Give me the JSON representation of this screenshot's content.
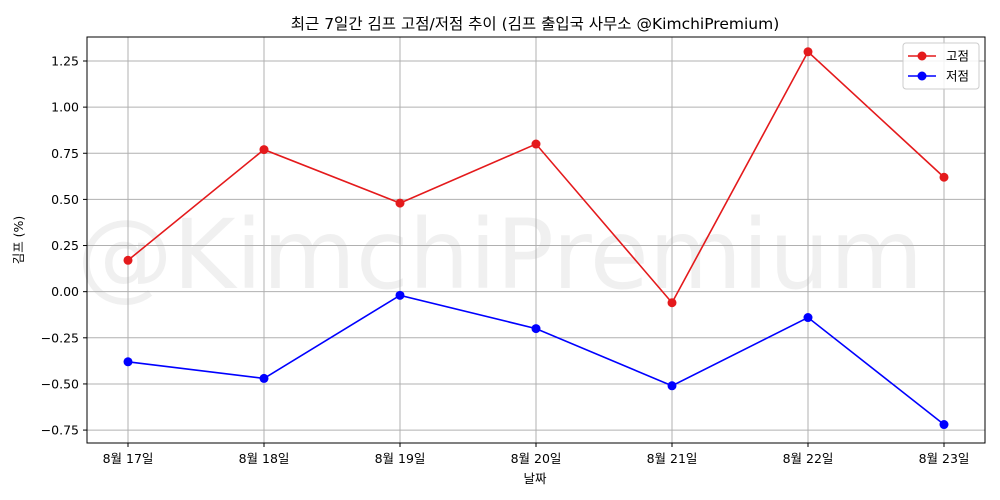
{
  "chart_data": {
    "type": "line",
    "title": "최근 7일간 김프 고점/저점 추이 (김프 출입국 사무소 @KimchiPremium)",
    "xlabel": "날짜",
    "ylabel": "김프 (%)",
    "watermark": "@KimchiPremium",
    "categories": [
      "8월 17일",
      "8월 18일",
      "8월 19일",
      "8월 20일",
      "8월 21일",
      "8월 22일",
      "8월 23일"
    ],
    "ylim": [
      -0.82,
      1.38
    ],
    "yticks": [
      1.25,
      1.0,
      0.75,
      0.5,
      0.25,
      0.0,
      -0.25,
      -0.5,
      -0.75
    ],
    "ytick_labels": [
      "1.25",
      "1.00",
      "0.75",
      "0.50",
      "0.25",
      "0.00",
      "−0.25",
      "−0.50",
      "−0.75"
    ],
    "grid": true,
    "legend_position": "top-right",
    "series": [
      {
        "name": "고점",
        "color": "#e41a1c",
        "values": [
          0.17,
          0.77,
          0.48,
          0.8,
          -0.06,
          1.3,
          0.62
        ]
      },
      {
        "name": "저점",
        "color": "#0000ff",
        "values": [
          -0.38,
          -0.47,
          -0.02,
          -0.2,
          -0.51,
          -0.14,
          -0.72
        ]
      }
    ]
  }
}
